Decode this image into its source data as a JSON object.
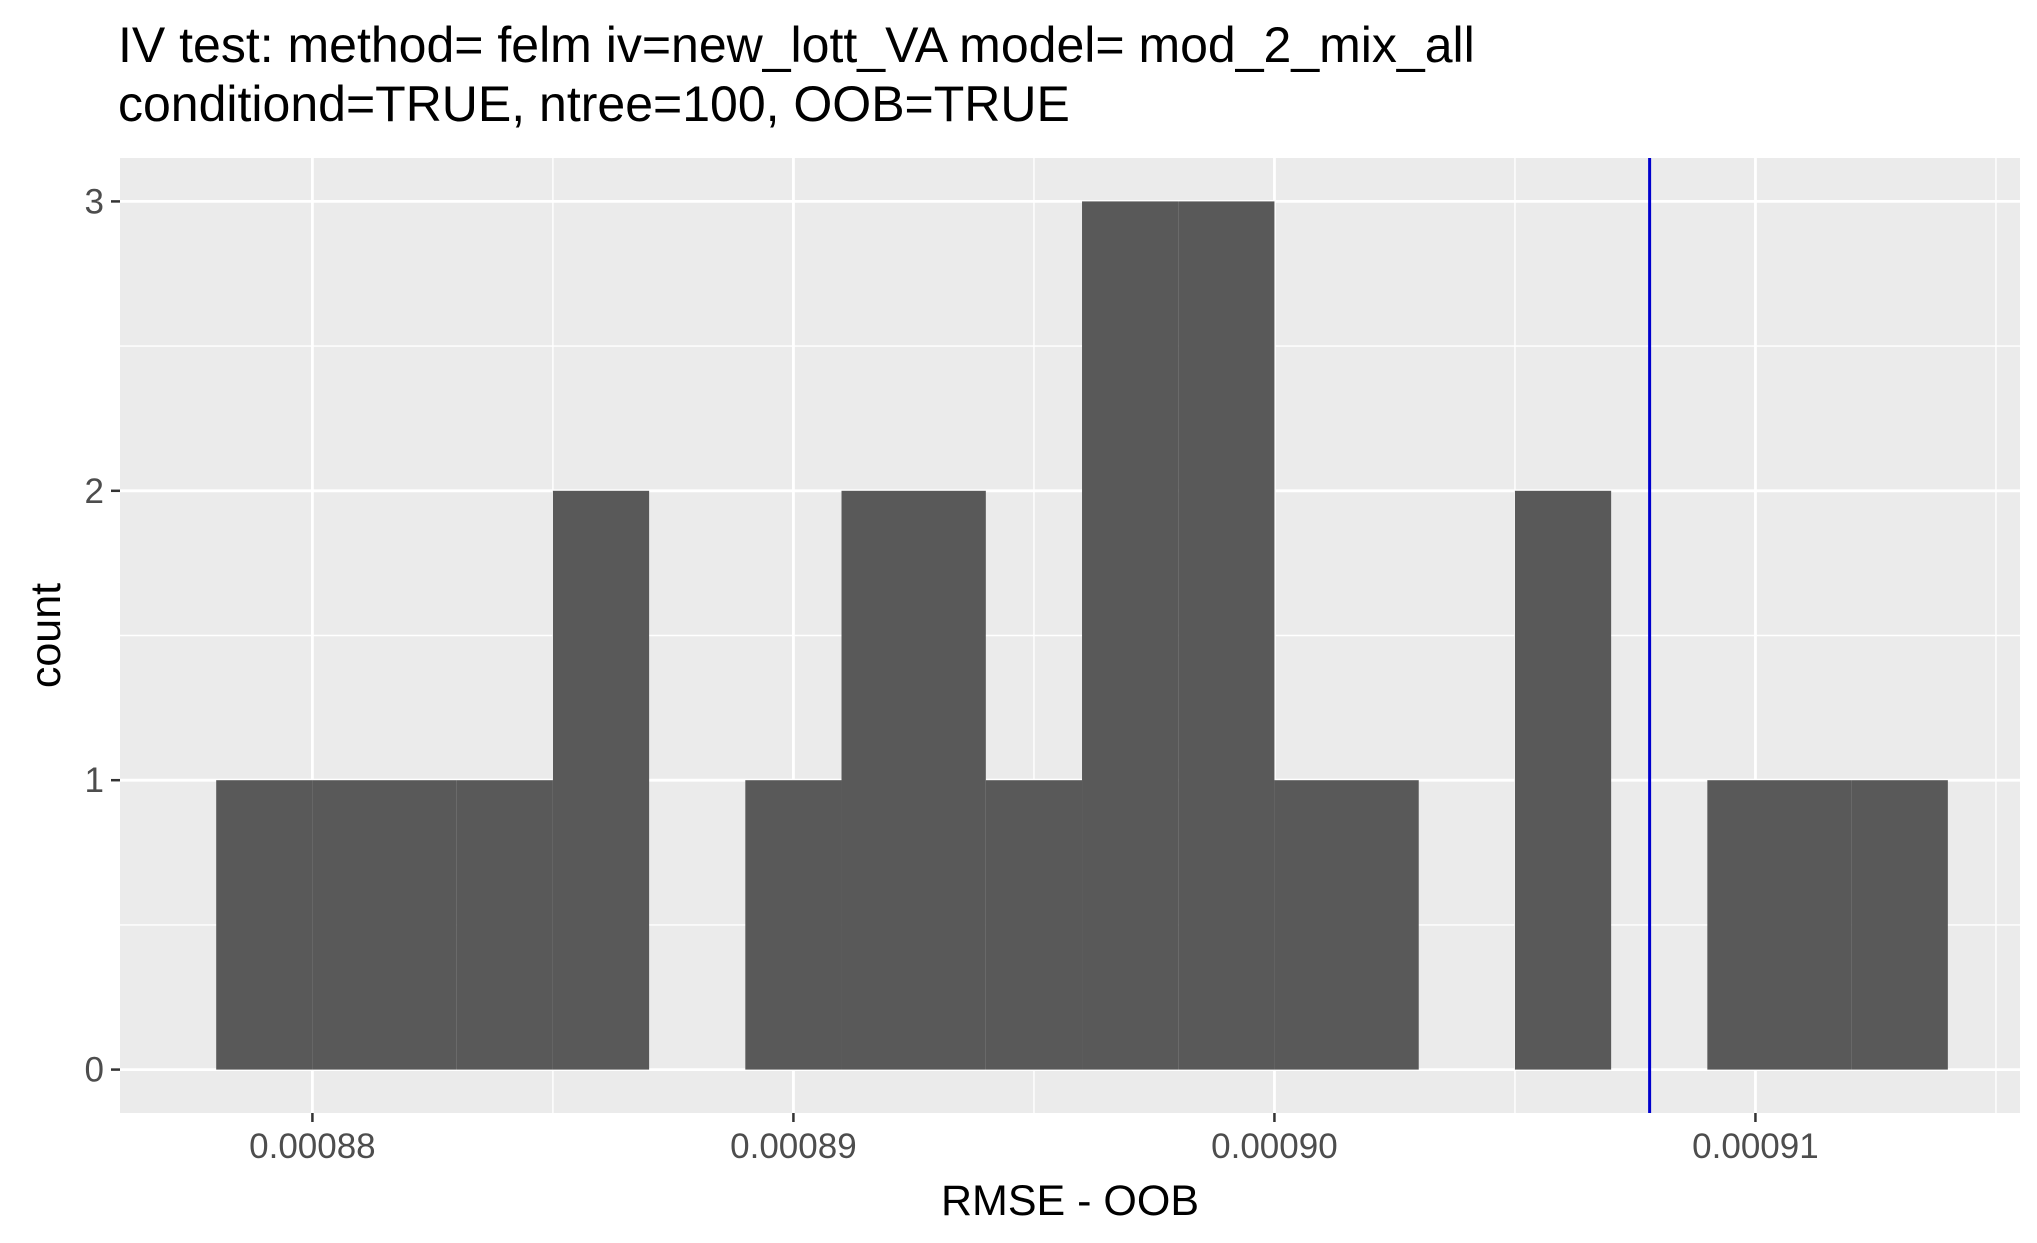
{
  "chart_data": {
    "type": "bar",
    "title_lines": [
      "IV test: method= felm iv=new_lott_VA model= mod_2_mix_all",
      "conditiond=TRUE, ntree=100, OOB=TRUE"
    ],
    "xlabel": "RMSE - OOB",
    "ylabel": "count",
    "xlim": [
      0.000876,
      0.0009155
    ],
    "ylim": [
      -0.15,
      3.15
    ],
    "x_ticks": [
      0.00088,
      0.00089,
      0.0009,
      0.00091
    ],
    "x_tick_labels": [
      "0.00088",
      "0.00089",
      "0.00090",
      "0.00091"
    ],
    "y_ticks": [
      0,
      1,
      2,
      3
    ],
    "y_tick_labels": [
      "0",
      "1",
      "2",
      "3"
    ],
    "bin_width": 2.25e-06,
    "bins": [
      {
        "x_start": 0.000878,
        "x_end": 0.00088,
        "count": 1
      },
      {
        "x_start": 0.00088,
        "x_end": 0.000883,
        "count": 1
      },
      {
        "x_start": 0.000883,
        "x_end": 0.000885,
        "count": 1
      },
      {
        "x_start": 0.000885,
        "x_end": 0.000887,
        "count": 2
      },
      {
        "x_start": 0.000887,
        "x_end": 0.000889,
        "count": 0
      },
      {
        "x_start": 0.000889,
        "x_end": 0.000891,
        "count": 1
      },
      {
        "x_start": 0.000891,
        "x_end": 0.000894,
        "count": 2
      },
      {
        "x_start": 0.000894,
        "x_end": 0.000896,
        "count": 1
      },
      {
        "x_start": 0.000896,
        "x_end": 0.000898,
        "count": 3
      },
      {
        "x_start": 0.000898,
        "x_end": 0.0009,
        "count": 3
      },
      {
        "x_start": 0.0009,
        "x_end": 0.000903,
        "count": 1
      },
      {
        "x_start": 0.000903,
        "x_end": 0.000905,
        "count": 0
      },
      {
        "x_start": 0.000905,
        "x_end": 0.000907,
        "count": 2
      },
      {
        "x_start": 0.000907,
        "x_end": 0.000909,
        "count": 0
      },
      {
        "x_start": 0.000909,
        "x_end": 0.000912,
        "count": 1
      },
      {
        "x_start": 0.000912,
        "x_end": 0.000914,
        "count": 1
      }
    ],
    "vline": {
      "x": 0.0009078,
      "color": "#0000cd"
    },
    "grid": true,
    "colors": {
      "panel_background": "#ebebeb",
      "grid": "#ffffff",
      "bar_fill": "#595959",
      "tick_label": "#4d4d4d",
      "tick_mark": "#333333"
    }
  }
}
